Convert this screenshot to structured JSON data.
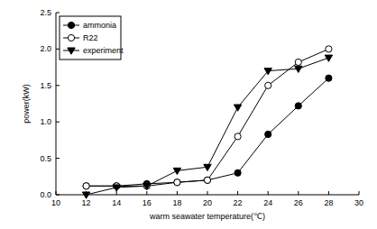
{
  "chart_data": {
    "type": "line",
    "x_label": "warm seawater temperature(℃)",
    "y_label": "power(kW)",
    "x": [
      12,
      14,
      16,
      18,
      20,
      22,
      24,
      26,
      28
    ],
    "series": [
      {
        "name": "ammonia",
        "color": "#000000",
        "marker": "circle",
        "values": [
          0.12,
          0.12,
          0.15,
          0.17,
          0.2,
          0.3,
          0.83,
          1.22,
          1.6
        ]
      },
      {
        "name": "R22",
        "color": "#000000",
        "marker": "circle-open",
        "values": [
          0.12,
          0.12,
          0.12,
          0.17,
          0.2,
          0.8,
          1.5,
          1.82,
          2.0
        ]
      },
      {
        "name": "experiment",
        "color": "#000000",
        "marker": "triangle-down",
        "values": [
          0.0,
          0.1,
          0.12,
          0.33,
          0.38,
          1.2,
          1.7,
          1.73,
          1.88
        ]
      }
    ],
    "xlim": [
      10,
      30
    ],
    "xticks": [
      10,
      12,
      14,
      16,
      18,
      20,
      22,
      24,
      26,
      28,
      30
    ],
    "ylim": [
      0,
      2.5
    ],
    "yticks": [
      {
        "value": 0,
        "label": "0.0"
      },
      {
        "value": 0.5,
        "label": "0.5"
      },
      {
        "value": 1,
        "label": "1.0"
      },
      {
        "value": 1.5,
        "label": "1.5"
      },
      {
        "value": 2,
        "label": "2.0"
      },
      {
        "value": 2.5,
        "label": "2.5"
      }
    ],
    "grid": false,
    "legend": "upper left"
  }
}
